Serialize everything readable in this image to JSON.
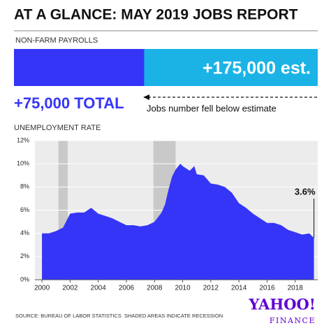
{
  "title": "AT A GLANCE: MAY 2019 JOBS REPORT",
  "chart_data": [
    {
      "type": "bullet",
      "title": "NON-FARM PAYROLLS",
      "values": [
        75000,
        175000
      ],
      "value_labels": [
        "+75,000 TOTAL",
        "+175,000 est."
      ],
      "colors": [
        "#3535f7",
        "#1bb3e6"
      ],
      "annotation": "Jobs number fell below estimate",
      "xlim": [
        0,
        175000
      ]
    },
    {
      "type": "area",
      "title": "UNEMPLOYMENT RATE",
      "color": "#3535f7",
      "x": [
        2000.0,
        2000.5,
        2001.0,
        2001.5,
        2002.0,
        2002.5,
        2003.0,
        2003.5,
        2004.0,
        2004.5,
        2005.0,
        2005.5,
        2006.0,
        2006.5,
        2007.0,
        2007.5,
        2008.0,
        2008.5,
        2008.75,
        2009.0,
        2009.25,
        2009.5,
        2009.83,
        2010.0,
        2010.5,
        2010.83,
        2011.0,
        2011.5,
        2012.0,
        2012.5,
        2013.0,
        2013.5,
        2014.0,
        2014.5,
        2015.0,
        2015.5,
        2016.0,
        2016.5,
        2017.0,
        2017.5,
        2018.0,
        2018.5,
        2019.0,
        2019.33
      ],
      "values": [
        4.0,
        4.0,
        4.2,
        4.5,
        5.7,
        5.8,
        5.8,
        6.2,
        5.7,
        5.5,
        5.3,
        5.0,
        4.7,
        4.7,
        4.6,
        4.7,
        5.0,
        5.8,
        6.5,
        7.8,
        8.9,
        9.5,
        10.0,
        9.8,
        9.4,
        9.8,
        9.1,
        9.0,
        8.3,
        8.2,
        8.0,
        7.5,
        6.6,
        6.2,
        5.7,
        5.3,
        4.9,
        4.9,
        4.7,
        4.3,
        4.1,
        3.9,
        4.0,
        3.6
      ],
      "recessions": [
        [
          2001.17,
          2001.83
        ],
        [
          2007.92,
          2009.5
        ]
      ],
      "recession_color": "#c9c9c9",
      "last_label": "3.6%",
      "xlim": [
        1999.5,
        2019.6
      ],
      "xticks": [
        2000,
        2002,
        2004,
        2006,
        2008,
        2010,
        2012,
        2014,
        2016,
        2018
      ],
      "ylim": [
        0,
        12
      ],
      "yticks": [
        {
          "value": 0,
          "label": "0%"
        },
        {
          "value": 2,
          "label": "2%"
        },
        {
          "value": 4,
          "label": "4%"
        },
        {
          "value": 6,
          "label": "6%"
        },
        {
          "value": 8,
          "label": "8%"
        },
        {
          "value": 10,
          "label": "10%"
        },
        {
          "value": 12,
          "label": "12%"
        }
      ],
      "grid": true,
      "recession_note": "SHADED AREAS INDICATE RECESSION"
    }
  ],
  "source": "SOURCE: BUREAU OF LABOR STATISTICS",
  "logo": {
    "name": "YAHOO!",
    "sub": "FINANCE"
  }
}
